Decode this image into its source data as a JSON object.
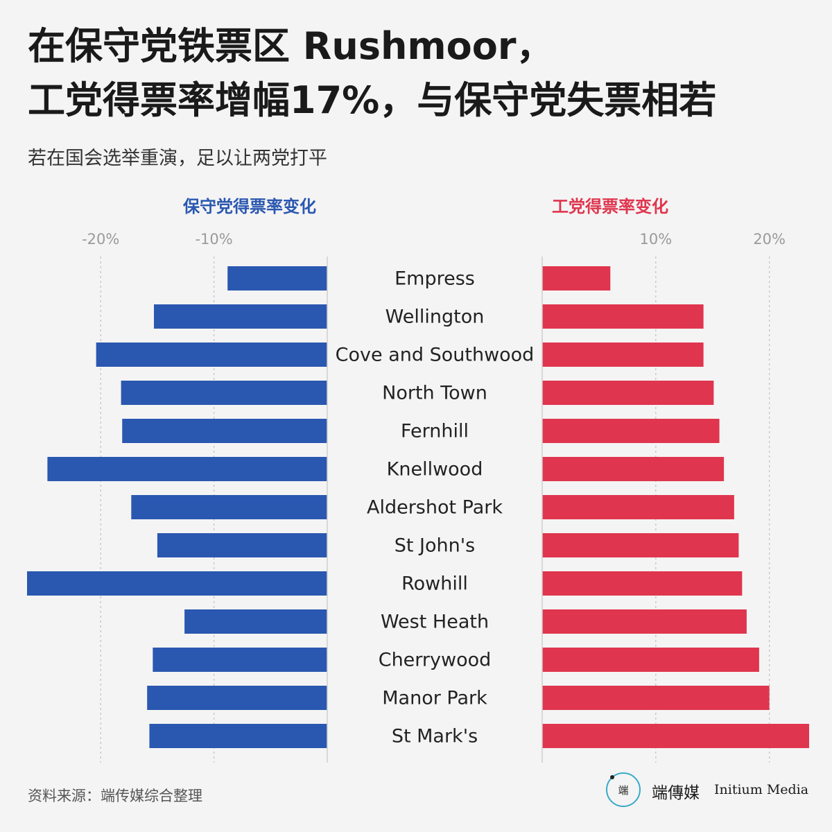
{
  "title_lines": [
    "在保守党铁票区 Rushmoor，",
    "工党得票率增幅17%，与保守党失票相若"
  ],
  "subtitle": "若在国会选举重演，足以让两党打平",
  "source": "资料来源：端传媒综合整理",
  "logo": {
    "mark": "端",
    "name_cn": "端傳媒",
    "name_en": "Initium Media"
  },
  "colors": {
    "conservative": "#2a57b0",
    "labour": "#e0354e"
  },
  "chart_data": {
    "type": "bar",
    "categories": [
      "Empress",
      "Wellington",
      "Cove and Southwood",
      "North Town",
      "Fernhill",
      "Knellwood",
      "Aldershot Park",
      "St John's",
      "Rowhill",
      "West Heath",
      "Cherrywood",
      "Manor Park",
      "St Mark's"
    ],
    "series": [
      {
        "name": "保守党得票率变化",
        "values": [
          -8.8,
          -15.3,
          -20.4,
          -18.2,
          -18.1,
          -24.7,
          -17.3,
          -15.0,
          -26.5,
          -12.6,
          -15.4,
          -15.9,
          -15.7
        ],
        "xlim": [
          -26.5,
          0
        ],
        "ticks": [
          -20,
          -10
        ],
        "tick_labels": [
          "-20%",
          "-10%"
        ]
      },
      {
        "name": "工党得票率变化",
        "values": [
          6.0,
          14.2,
          14.2,
          15.1,
          15.6,
          16.0,
          16.9,
          17.3,
          17.6,
          18.0,
          19.1,
          20.0,
          23.5
        ],
        "xlim": [
          0,
          23.5
        ],
        "ticks": [
          10,
          20
        ],
        "tick_labels": [
          "10%",
          "20%"
        ]
      }
    ],
    "grid": true
  }
}
